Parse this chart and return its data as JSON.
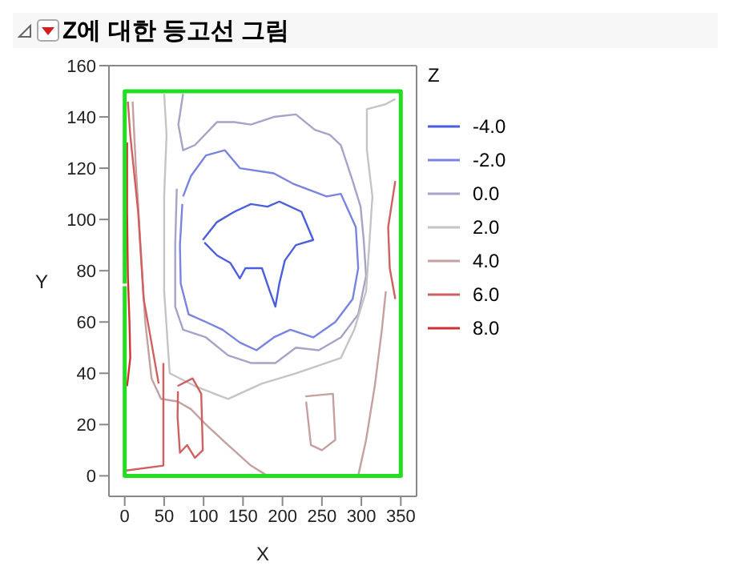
{
  "chart_data": {
    "type": "line",
    "title": "Z에 대한 등고선 그림",
    "xlabel": "X",
    "ylabel": "Y",
    "legend_title": "Z",
    "xlim": [
      -20,
      370
    ],
    "xticks": [
      0,
      50,
      100,
      150,
      200,
      250,
      300,
      350
    ],
    "ylim": [
      -8,
      160
    ],
    "yticks": [
      0,
      20,
      40,
      60,
      80,
      100,
      120,
      140,
      160
    ],
    "grid": false,
    "legend": "right",
    "marker": "none",
    "line_style": "solid",
    "series": [
      {
        "name": "-4.0",
        "color": "#4b5fdc",
        "x": [
          99,
          117,
          139,
          160,
          181,
          196,
          224,
          239,
          217,
          203,
          196,
          191,
          184,
          174,
          153,
          146,
          134,
          117,
          101
        ],
        "values": [
          92,
          99,
          103,
          106,
          105,
          107,
          103,
          92,
          90,
          84,
          75,
          66,
          72,
          81,
          81,
          77,
          83,
          86,
          91
        ]
      },
      {
        "name": "-2.0",
        "color": "#7a83e0",
        "x": [
          74,
          84,
          103,
          127,
          146,
          189,
          213,
          256,
          274,
          293,
          296,
          289,
          267,
          239,
          210,
          189,
          167,
          146,
          124,
          103,
          81,
          71,
          70,
          73
        ],
        "values": [
          109,
          117,
          125,
          127,
          120,
          118,
          114,
          109,
          110,
          97,
          81,
          69,
          60,
          54,
          57,
          54,
          49,
          52,
          57,
          60,
          63,
          75,
          90,
          106
        ]
      },
      {
        "name": "0.0",
        "color": "#a4a4c8",
        "x": [
          74,
          68,
          74,
          89,
          117,
          139,
          160,
          189,
          217,
          241,
          260,
          274,
          289,
          299,
          303,
          306,
          296,
          274,
          246,
          217,
          191,
          160,
          131,
          103,
          74,
          64,
          64,
          66
        ],
        "values": [
          149,
          137,
          127,
          129,
          138,
          138,
          137,
          140,
          141,
          135,
          133,
          129,
          115,
          105,
          92,
          78,
          63,
          54,
          49,
          50,
          44,
          44,
          47,
          54,
          57,
          66,
          90,
          112
        ]
      },
      {
        "name": "2.0",
        "color": "#c4c4c4",
        "x": [
          50,
          53,
          50,
          50,
          57,
          89,
          131,
          174,
          217,
          274,
          291,
          306,
          310,
          314,
          307,
          307,
          331,
          343
        ],
        "values": [
          149,
          133,
          109,
          72,
          40,
          35,
          30,
          36,
          40,
          46,
          57,
          72,
          90,
          109,
          127,
          143,
          145,
          147
        ]
      },
      {
        "name": "4.0",
        "color": "#c4a0a0",
        "x": [
          10,
          14,
          20,
          26,
          34,
          46,
          67,
          84,
          103,
          131,
          160,
          181,
          null,
          331,
          326,
          317,
          306,
          296,
          null,
          229,
          264,
          267,
          250,
          236,
          230
        ],
        "values": [
          146,
          121,
          90,
          60,
          38,
          30,
          29,
          26,
          20,
          12,
          4,
          0,
          null,
          72,
          57,
          35,
          14,
          0,
          null,
          31,
          32,
          14,
          10,
          12,
          29
        ]
      },
      {
        "name": "6.0",
        "color": "#d06060",
        "x": [
          4,
          7,
          17,
          24,
          31,
          43,
          null,
          49,
          49,
          0,
          null,
          67,
          86,
          97,
          99,
          89,
          79,
          70,
          67,
          67.5,
          null,
          343,
          334,
          336,
          343
        ],
        "values": [
          146,
          133,
          103,
          69,
          57,
          36,
          null,
          44,
          4,
          2,
          null,
          35,
          38,
          32,
          10,
          7,
          12,
          9,
          23,
          33,
          null,
          115,
          97,
          81,
          69
        ]
      },
      {
        "name": "8.0",
        "color": "#d03030",
        "x": [
          3,
          3,
          4,
          6,
          7,
          3
        ],
        "values": [
          130,
          103,
          78,
          60,
          46,
          35
        ]
      },
      {
        "color": "#22dd22",
        "x": [
          0,
          0,
          350,
          350,
          0,
          0
        ],
        "values": [
          75,
          150,
          150,
          0,
          0,
          74
        ]
      }
    ]
  }
}
